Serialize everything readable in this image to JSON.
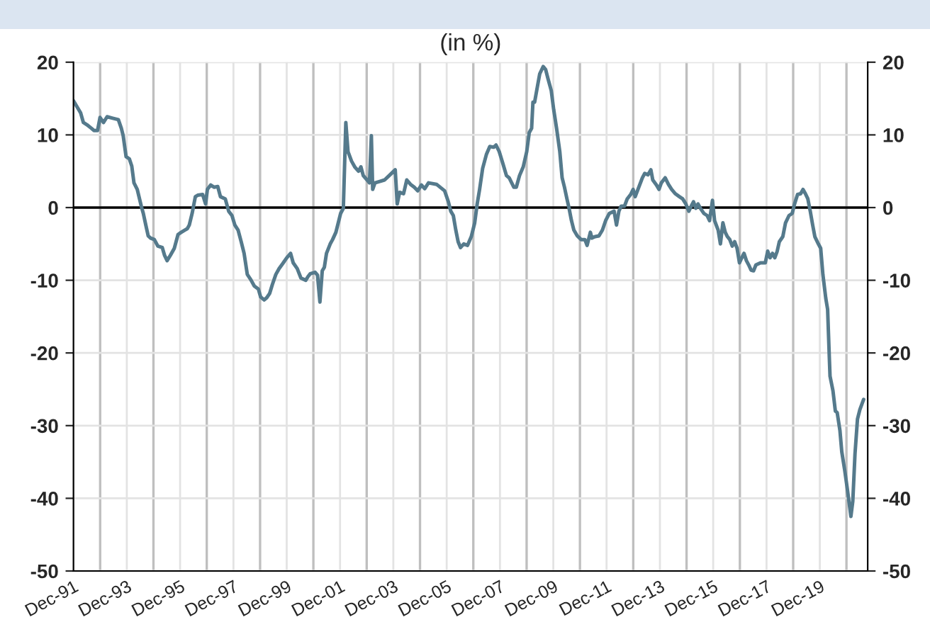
{
  "chart_data": {
    "type": "line",
    "title": "(in %)",
    "x": [
      "1991-12-01",
      "1992-01-23",
      "1992-03-09",
      "1992-04-15",
      "1992-06-02",
      "1992-08-03",
      "1992-09-06",
      "1992-10-26",
      "1992-11-29",
      "1993-01-15",
      "1993-03-06",
      "1993-05-21",
      "1993-08-07",
      "1993-09-17",
      "1993-10-12",
      "1993-11-21",
      "1994-01-05",
      "1994-02-07",
      "1994-03-09",
      "1994-04-23",
      "1994-06-17",
      "1994-07-15",
      "1994-08-18",
      "1994-09-20",
      "1994-10-23",
      "1994-12-13",
      "1995-01-30",
      "1995-04-01",
      "1995-05-03",
      "1995-06-06",
      "1995-07-19",
      "1995-09-13",
      "1995-11-03",
      "1995-12-17",
      "1996-02-03",
      "1996-03-09",
      "1996-04-05",
      "1996-05-14",
      "1996-06-27",
      "1996-07-30",
      "1996-10-05",
      "1996-11-14",
      "1996-12-09",
      "1997-01-23",
      "1997-03-13",
      "1997-04-30",
      "1997-06-06",
      "1997-08-11",
      "1997-09-27",
      "1997-11-11",
      "1997-12-20",
      "1998-02-03",
      "1998-03-17",
      "1998-04-26",
      "1998-06-09",
      "1998-07-26",
      "1998-09-13",
      "1998-11-07",
      "1998-12-09",
      "1999-01-26",
      "1999-03-02",
      "1999-04-12",
      "1999-05-18",
      "1999-07-05",
      "1999-08-18",
      "1999-10-08",
      "1999-12-02",
      "2000-01-23",
      "2000-02-28",
      "2000-04-23",
      "2000-06-13",
      "2000-08-18",
      "2000-09-17",
      "2000-10-19",
      "2000-12-24",
      "2001-01-26",
      "2001-02-28",
      "2001-04-01",
      "2001-04-30",
      "2001-05-29",
      "2001-07-19",
      "2001-08-21",
      "2001-10-05",
      "2001-11-14",
      "2001-12-09",
      "2002-01-15",
      "2002-02-18",
      "2002-03-20",
      "2002-05-07",
      "2002-06-20",
      "2002-08-11",
      "2002-09-13",
      "2002-10-15",
      "2002-12-06",
      "2003-01-08",
      "2003-02-03",
      "2003-02-21",
      "2003-03-24",
      "2003-05-29",
      "2003-08-03",
      "2003-10-05",
      "2003-12-27",
      "2004-01-23",
      "2004-02-25",
      "2004-04-19",
      "2004-06-02",
      "2004-07-23",
      "2004-09-13",
      "2004-10-30",
      "2004-12-20",
      "2005-02-03",
      "2005-03-27",
      "2005-07-15",
      "2005-11-03",
      "2005-12-24",
      "2006-01-26",
      "2006-03-02",
      "2006-04-05",
      "2006-05-07",
      "2006-06-09",
      "2006-07-23",
      "2006-09-13",
      "2006-11-03",
      "2006-12-20",
      "2007-01-23",
      "2007-02-25",
      "2007-04-08",
      "2007-05-29",
      "2007-07-15",
      "2007-09-06",
      "2007-10-08",
      "2007-11-21",
      "2008-01-12",
      "2008-02-28",
      "2008-04-05",
      "2008-04-30",
      "2008-06-09",
      "2008-07-12",
      "2008-08-25",
      "2008-10-15",
      "2008-12-02",
      "2009-01-05",
      "2009-02-07",
      "2009-02-25",
      "2009-03-20",
      "2009-04-30",
      "2009-05-29",
      "2009-07-15",
      "2009-08-18",
      "2009-09-20",
      "2009-11-03",
      "2009-12-06",
      "2010-01-15",
      "2010-02-28",
      "2010-04-01",
      "2010-05-03",
      "2010-06-06",
      "2010-07-05",
      "2010-08-07",
      "2010-09-09",
      "2010-10-26",
      "2010-12-17",
      "2011-02-07",
      "2011-03-09",
      "2011-04-23",
      "2011-05-14",
      "2011-06-27",
      "2011-08-18",
      "2011-10-05",
      "2011-11-18",
      "2012-01-08",
      "2012-03-13",
      "2012-04-15",
      "2012-05-18",
      "2012-06-17",
      "2012-08-03",
      "2012-09-09",
      "2012-10-26",
      "2012-11-29",
      "2012-12-27",
      "2013-02-14",
      "2013-04-05",
      "2013-05-07",
      "2013-06-20",
      "2013-07-30",
      "2013-08-25",
      "2013-10-15",
      "2013-11-18",
      "2013-12-20",
      "2014-02-11",
      "2014-03-27",
      "2014-05-11",
      "2014-07-01",
      "2014-08-25",
      "2014-10-08",
      "2014-11-21",
      "2015-01-01",
      "2015-02-03",
      "2015-03-06",
      "2015-04-08",
      "2015-05-07",
      "2015-06-09",
      "2015-07-26",
      "2015-09-09",
      "2015-10-12",
      "2015-11-21",
      "2015-12-20",
      "2016-02-07",
      "2016-03-09",
      "2016-04-12",
      "2016-05-14",
      "2016-06-13",
      "2016-07-15",
      "2016-08-18",
      "2016-09-20",
      "2016-10-23",
      "2016-11-25",
      "2016-12-27",
      "2017-01-26",
      "2017-02-28",
      "2017-04-01",
      "2017-05-03",
      "2017-06-06",
      "2017-07-08",
      "2017-09-09",
      "2017-11-14",
      "2017-12-17",
      "2018-01-19",
      "2018-02-21",
      "2018-03-24",
      "2018-04-26",
      "2018-05-25",
      "2018-07-12",
      "2018-08-18",
      "2018-10-05",
      "2018-11-18",
      "2018-12-20",
      "2019-01-30",
      "2019-03-13",
      "2019-04-15",
      "2019-05-18",
      "2019-06-20",
      "2019-07-23",
      "2019-08-25",
      "2019-09-24",
      "2019-11-11",
      "2019-12-13",
      "2020-01-12",
      "2020-02-21",
      "2020-03-17",
      "2020-04-08",
      "2020-04-19",
      "2020-05-29",
      "2020-07-01",
      "2020-07-26",
      "2020-09-02",
      "2020-09-27",
      "2020-11-07",
      "2020-12-09",
      "2021-01-12",
      "2021-01-30",
      "2021-02-25",
      "2021-03-27",
      "2021-04-30",
      "2021-06-02",
      "2021-07-23"
    ],
    "series": [
      {
        "color": "#557a8c",
        "values": [
          14.7,
          13.8,
          13.0,
          11.7,
          11.4,
          10.9,
          10.6,
          10.6,
          12.4,
          11.7,
          12.5,
          12.3,
          12.1,
          10.9,
          9.9,
          7.0,
          6.7,
          5.7,
          3.4,
          2.5,
          0.2,
          -0.8,
          -2.4,
          -3.9,
          -4.2,
          -4.4,
          -5.3,
          -5.5,
          -6.6,
          -7.3,
          -6.6,
          -5.6,
          -3.7,
          -3.4,
          -3.1,
          -2.9,
          -2.4,
          -0.8,
          1.5,
          1.7,
          1.8,
          0.5,
          2.5,
          3.1,
          2.8,
          2.9,
          1.5,
          1.2,
          -0.5,
          -1.1,
          -2.4,
          -3.1,
          -4.7,
          -6.3,
          -9.2,
          -9.9,
          -10.8,
          -11.2,
          -12.3,
          -12.7,
          -12.4,
          -11.8,
          -10.6,
          -9.2,
          -8.4,
          -7.7,
          -6.9,
          -6.3,
          -7.6,
          -8.4,
          -9.7,
          -10.0,
          -9.5,
          -9.1,
          -8.9,
          -9.3,
          -13.0,
          -8.7,
          -8.2,
          -6.3,
          -5.0,
          -4.4,
          -3.4,
          -1.8,
          -0.8,
          -0.1,
          11.7,
          7.7,
          6.4,
          5.6,
          5.0,
          5.6,
          4.4,
          3.8,
          3.4,
          9.9,
          2.5,
          3.4,
          3.6,
          3.8,
          4.4,
          5.2,
          0.5,
          2.1,
          1.9,
          3.8,
          3.2,
          2.8,
          2.3,
          3.1,
          2.6,
          3.4,
          3.2,
          2.3,
          0.8,
          -0.5,
          -1.1,
          -3.1,
          -4.7,
          -5.5,
          -5.0,
          -5.2,
          -4.0,
          -2.1,
          0.5,
          2.5,
          5.4,
          7.3,
          8.4,
          8.3,
          8.6,
          7.7,
          6.0,
          4.4,
          4.1,
          3.6,
          2.8,
          2.8,
          4.4,
          5.6,
          7.7,
          10.3,
          10.9,
          14.5,
          14.5,
          16.8,
          18.4,
          19.4,
          19.0,
          17.7,
          16.1,
          13.5,
          10.9,
          7.7,
          4.1,
          2.8,
          1.2,
          -0.1,
          -1.8,
          -3.1,
          -3.9,
          -4.4,
          -4.4,
          -5.2,
          -3.4,
          -4.2,
          -4.0,
          -3.9,
          -3.1,
          -1.8,
          -0.8,
          -0.5,
          -2.4,
          -0.5,
          0.2,
          0.2,
          1.2,
          1.8,
          2.5,
          1.5,
          2.8,
          4.1,
          4.7,
          4.5,
          5.2,
          3.8,
          3.1,
          2.5,
          3.4,
          4.1,
          3.2,
          2.5,
          1.9,
          1.5,
          1.2,
          0.5,
          -0.5,
          0.2,
          0.8,
          -0.1,
          0.5,
          -0.1,
          -0.8,
          -1.1,
          -1.8,
          1.0,
          -1.8,
          -3.1,
          -5.0,
          -2.1,
          -3.4,
          -4.0,
          -4.4,
          -5.3,
          -4.7,
          -5.6,
          -7.6,
          -6.9,
          -6.3,
          -7.3,
          -7.9,
          -8.6,
          -8.7,
          -7.9,
          -7.6,
          -7.6,
          -6.0,
          -6.9,
          -6.3,
          -6.9,
          -6.0,
          -4.7,
          -4.0,
          -2.1,
          -1.1,
          -0.8,
          0.5,
          1.8,
          1.9,
          2.5,
          1.9,
          1.2,
          -0.5,
          -2.4,
          -4.0,
          -5.0,
          -5.6,
          -9.2,
          -12.5,
          -14.0,
          -20.3,
          -23.2,
          -25.2,
          -28.0,
          -28.2,
          -30.7,
          -33.6,
          -36.2,
          -38.5,
          -41.1,
          -42.5,
          -40.4,
          -33.9,
          -29.1,
          -27.8,
          -26.4
        ]
      }
    ],
    "xlim": [
      "1991-12-01",
      "2021-09-17"
    ],
    "xticks": [
      {
        "value": "1991-12-01",
        "label": "Dec-91"
      },
      {
        "value": "1993-12-01",
        "label": "Dec-93"
      },
      {
        "value": "1995-12-01",
        "label": "Dec-95"
      },
      {
        "value": "1997-12-01",
        "label": "Dec-97"
      },
      {
        "value": "1999-12-01",
        "label": "Dec-99"
      },
      {
        "value": "2001-12-01",
        "label": "Dec-01"
      },
      {
        "value": "2003-12-01",
        "label": "Dec-03"
      },
      {
        "value": "2005-12-01",
        "label": "Dec-05"
      },
      {
        "value": "2007-12-01",
        "label": "Dec-07"
      },
      {
        "value": "2009-12-01",
        "label": "Dec-09"
      },
      {
        "value": "2011-12-01",
        "label": "Dec-11"
      },
      {
        "value": "2013-12-01",
        "label": "Dec-13"
      },
      {
        "value": "2015-12-01",
        "label": "Dec-15"
      },
      {
        "value": "2017-12-01",
        "label": "Dec-17"
      },
      {
        "value": "2019-12-01",
        "label": "Dec-19"
      }
    ],
    "ylim": [
      -50,
      20
    ],
    "yticks": [
      -50,
      -40,
      -30,
      -20,
      -10,
      0,
      10,
      20
    ],
    "y2lim": [
      -50,
      20
    ],
    "y2ticks": [
      -50,
      -40,
      -30,
      -20,
      -10,
      0,
      10,
      20
    ],
    "ref_lines": [
      {
        "axis": "y",
        "value": 0,
        "color": "#000000"
      }
    ],
    "grid": true,
    "marker": "none",
    "line_style": "solid",
    "legend": false
  }
}
